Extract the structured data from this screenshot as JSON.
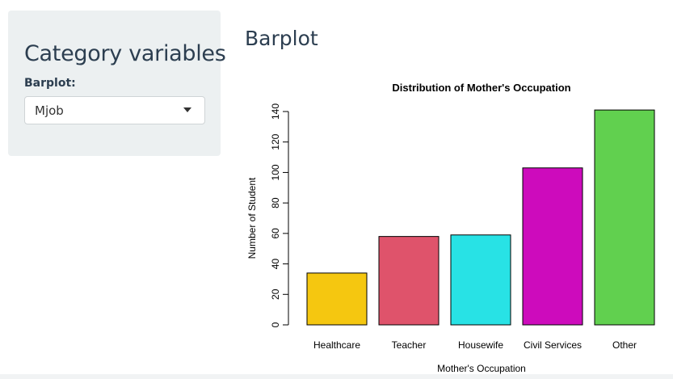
{
  "sidebar": {
    "title": "Category variables",
    "select": {
      "label": "Barplot:",
      "value": "Mjob"
    }
  },
  "main": {
    "title": "Barplot"
  },
  "chart_data": {
    "type": "bar",
    "title": "Distribution of Mother's Occupation",
    "xlabel": "Mother's Occupation",
    "ylabel": "Number of Student",
    "categories": [
      "Healthcare",
      "Teacher",
      "Housewife",
      "Civil Services",
      "Other"
    ],
    "values": [
      34,
      58,
      59,
      103,
      141
    ],
    "colors": [
      "#F5C710",
      "#DF536B",
      "#28E2E5",
      "#CD0BBC",
      "#61D04F"
    ],
    "ylim": [
      0,
      140
    ],
    "yticks": [
      "0",
      "20",
      "40",
      "60",
      "80",
      "100",
      "120",
      "140"
    ],
    "grid": false,
    "legend": "none"
  }
}
